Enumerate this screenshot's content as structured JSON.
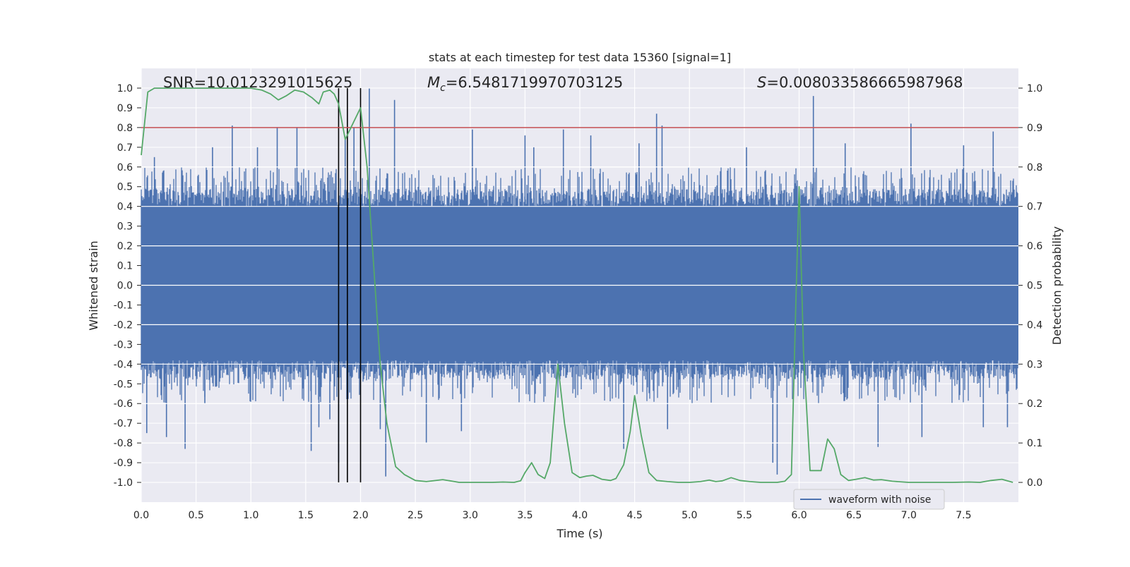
{
  "chart_data": {
    "type": "line",
    "title": "stats at each timestep for test data 15360 [signal=1]",
    "xlabel": "Time (s)",
    "ylabel_left": "Whitened strain",
    "ylabel_right": "Detection probability",
    "xlim": [
      0.0,
      8.0
    ],
    "ylim_left": [
      -1.1,
      1.1
    ],
    "ylim_right": [
      -0.05,
      1.05
    ],
    "x_ticks": [
      "0.0",
      "0.5",
      "1.0",
      "1.5",
      "2.0",
      "2.5",
      "3.0",
      "3.5",
      "4.0",
      "4.5",
      "5.0",
      "5.5",
      "6.0",
      "6.5",
      "7.0",
      "7.5"
    ],
    "y_ticks_left": [
      "1.0",
      "0.9",
      "0.8",
      "0.7",
      "0.6",
      "0.5",
      "0.4",
      "0.3",
      "0.2",
      "0.1",
      "0.0",
      "-0.1",
      "-0.2",
      "-0.3",
      "-0.4",
      "-0.5",
      "-0.6",
      "-0.7",
      "-0.8",
      "-0.9",
      "-1.0"
    ],
    "y_ticks_right": [
      "1.0",
      "0.9",
      "0.8",
      "0.7",
      "0.6",
      "0.5",
      "0.4",
      "0.3",
      "0.2",
      "0.1",
      "0.0"
    ],
    "annotations": {
      "snr": "SNR=10.0123291015625",
      "mc_symbol": "M",
      "mc_sub": "c",
      "mc_value": "=6.5481719970703125",
      "s_symbol": "S",
      "s_value": "=0.008033586665987968"
    },
    "threshold": {
      "value": 0.9,
      "axis": "right",
      "color": "#c44e52"
    },
    "vertical_lines": {
      "x": [
        1.8,
        1.88,
        2.0
      ],
      "color": "#000000"
    },
    "legend": {
      "label": "waveform with noise",
      "location": "lower-right"
    },
    "series": [
      {
        "name": "waveform with noise",
        "axis": "left",
        "color": "#4c72b0",
        "style": "noise band",
        "core_range": [
          -0.38,
          0.4
        ],
        "typical_peaks": [
          -0.6,
          0.6
        ],
        "spikes": [
          {
            "x": 0.05,
            "y": -0.75
          },
          {
            "x": 0.12,
            "y": 0.65
          },
          {
            "x": 0.23,
            "y": -0.77
          },
          {
            "x": 0.4,
            "y": -0.83
          },
          {
            "x": 0.58,
            "y": -0.6
          },
          {
            "x": 0.65,
            "y": 0.7
          },
          {
            "x": 0.83,
            "y": 0.81
          },
          {
            "x": 1.06,
            "y": 0.7
          },
          {
            "x": 1.24,
            "y": 0.8
          },
          {
            "x": 1.42,
            "y": 0.8
          },
          {
            "x": 1.55,
            "y": -0.84
          },
          {
            "x": 1.62,
            "y": -0.72
          },
          {
            "x": 1.72,
            "y": -0.68
          },
          {
            "x": 1.8,
            "y": -0.9
          },
          {
            "x": 1.86,
            "y": 0.74
          },
          {
            "x": 1.94,
            "y": 0.8
          },
          {
            "x": 2.08,
            "y": 1.0
          },
          {
            "x": 2.18,
            "y": -0.73
          },
          {
            "x": 2.23,
            "y": -0.97
          },
          {
            "x": 2.31,
            "y": 0.94
          },
          {
            "x": 2.6,
            "y": -0.8
          },
          {
            "x": 2.92,
            "y": -0.74
          },
          {
            "x": 3.02,
            "y": 0.79
          },
          {
            "x": 3.5,
            "y": 0.76
          },
          {
            "x": 3.58,
            "y": 0.7
          },
          {
            "x": 3.85,
            "y": 0.79
          },
          {
            "x": 4.1,
            "y": 0.76
          },
          {
            "x": 4.4,
            "y": -0.83
          },
          {
            "x": 4.54,
            "y": 0.72
          },
          {
            "x": 4.7,
            "y": 0.87
          },
          {
            "x": 4.75,
            "y": 0.81
          },
          {
            "x": 4.8,
            "y": -0.73
          },
          {
            "x": 5.52,
            "y": 0.7
          },
          {
            "x": 5.76,
            "y": -0.9
          },
          {
            "x": 5.8,
            "y": -0.96
          },
          {
            "x": 6.13,
            "y": 0.96
          },
          {
            "x": 6.42,
            "y": 0.72
          },
          {
            "x": 6.72,
            "y": -0.82
          },
          {
            "x": 7.02,
            "y": 0.82
          },
          {
            "x": 7.12,
            "y": -0.77
          },
          {
            "x": 7.5,
            "y": 0.71
          },
          {
            "x": 7.68,
            "y": -0.72
          },
          {
            "x": 7.77,
            "y": 0.78
          },
          {
            "x": 7.9,
            "y": -0.72
          }
        ]
      },
      {
        "name": "detection probability",
        "axis": "right",
        "color": "#55a868",
        "x": [
          0.0,
          0.06,
          0.12,
          0.2,
          0.3,
          0.4,
          0.5,
          0.6,
          0.7,
          0.8,
          0.9,
          1.0,
          1.1,
          1.18,
          1.25,
          1.32,
          1.4,
          1.48,
          1.56,
          1.62,
          1.66,
          1.72,
          1.76,
          1.8,
          1.86,
          1.93,
          2.0,
          2.06,
          2.12,
          2.18,
          2.24,
          2.32,
          2.4,
          2.5,
          2.6,
          2.75,
          2.9,
          3.05,
          3.2,
          3.3,
          3.4,
          3.46,
          3.5,
          3.56,
          3.62,
          3.68,
          3.73,
          3.8,
          3.86,
          3.93,
          4.0,
          4.06,
          4.12,
          4.2,
          4.28,
          4.33,
          4.4,
          4.46,
          4.5,
          4.56,
          4.63,
          4.7,
          4.8,
          4.9,
          5.0,
          5.1,
          5.18,
          5.24,
          5.3,
          5.38,
          5.46,
          5.55,
          5.65,
          5.72,
          5.8,
          5.87,
          5.93,
          5.97,
          6.0,
          6.04,
          6.1,
          6.14,
          6.2,
          6.26,
          6.32,
          6.38,
          6.45,
          6.52,
          6.6,
          6.68,
          6.75,
          6.85,
          7.0,
          7.2,
          7.4,
          7.55,
          7.65,
          7.75,
          7.85,
          7.95
        ],
        "y": [
          0.83,
          0.99,
          1.0,
          1.0,
          1.0,
          1.0,
          1.0,
          1.0,
          1.0,
          1.0,
          1.0,
          1.0,
          0.995,
          0.985,
          0.97,
          0.98,
          0.995,
          0.99,
          0.975,
          0.96,
          0.99,
          0.995,
          0.985,
          0.96,
          0.87,
          0.91,
          0.95,
          0.8,
          0.55,
          0.3,
          0.15,
          0.04,
          0.02,
          0.005,
          0.002,
          0.007,
          0.0,
          0.0,
          0.0,
          0.001,
          0.0,
          0.004,
          0.025,
          0.05,
          0.02,
          0.01,
          0.05,
          0.3,
          0.15,
          0.025,
          0.012,
          0.016,
          0.018,
          0.008,
          0.005,
          0.01,
          0.045,
          0.13,
          0.22,
          0.12,
          0.025,
          0.005,
          0.002,
          0.0,
          0.0,
          0.002,
          0.006,
          0.002,
          0.004,
          0.012,
          0.005,
          0.002,
          0.0,
          0.0,
          0.0,
          0.003,
          0.02,
          0.45,
          0.75,
          0.33,
          0.03,
          0.03,
          0.03,
          0.11,
          0.085,
          0.02,
          0.005,
          0.008,
          0.012,
          0.006,
          0.007,
          0.003,
          0.0,
          0.0,
          0.0,
          0.001,
          0.0,
          0.005,
          0.008,
          0.0
        ]
      }
    ]
  }
}
